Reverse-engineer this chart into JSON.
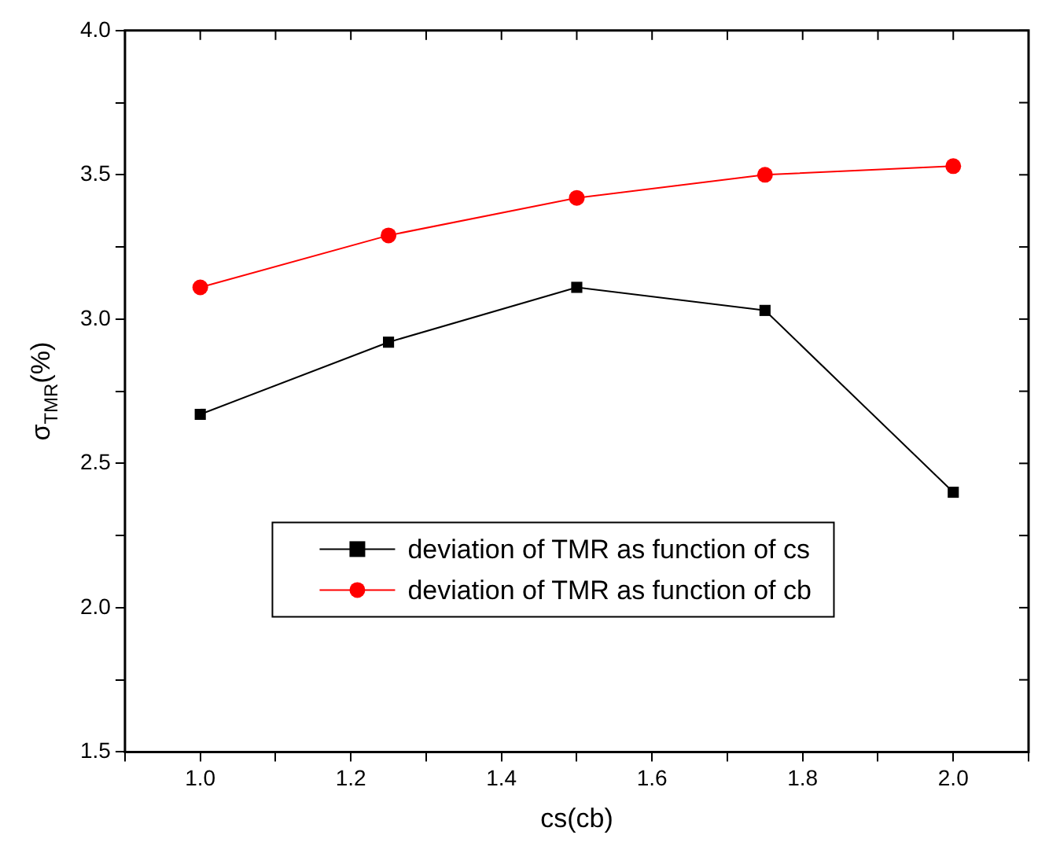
{
  "chart_data": {
    "type": "line",
    "xlabel": "cs(cb)",
    "ylabel": "σ$_{TMR}$(%)",
    "x": [
      1.0,
      1.25,
      1.5,
      1.75,
      2.0
    ],
    "series": [
      {
        "name": "deviation of TMR as function of cs",
        "color": "#000000",
        "marker": "square",
        "values": [
          2.67,
          2.92,
          3.11,
          3.03,
          2.4
        ]
      },
      {
        "name": "deviation of TMR as function of cb",
        "color": "#ff0000",
        "marker": "circle",
        "values": [
          3.11,
          3.29,
          3.42,
          3.5,
          3.53
        ]
      }
    ],
    "xlim": [
      0.9,
      2.1
    ],
    "xticks": [
      {
        "value": 0.9,
        "label": null
      },
      {
        "value": 1,
        "label": "1.0"
      },
      {
        "value": 1.1,
        "label": null
      },
      1.2,
      {
        "value": 1.3,
        "label": null
      },
      1.4,
      {
        "value": 1.5,
        "label": null
      },
      1.6,
      {
        "value": 1.7,
        "label": null
      },
      1.8,
      {
        "value": 1.9,
        "label": null
      },
      {
        "value": 2,
        "label": "2.0"
      },
      {
        "value": 2.1,
        "label": null
      }
    ],
    "ylim": [
      1.5,
      4.0
    ],
    "yticks": [
      1.5,
      {
        "value": 1.75,
        "label": null
      },
      {
        "value": 2,
        "label": "2.0"
      },
      {
        "value": 2.25,
        "label": null
      },
      2.5,
      {
        "value": 2.75,
        "label": null
      },
      {
        "value": 3,
        "label": "3.0"
      },
      {
        "value": 3.25,
        "label": null
      },
      3.5,
      {
        "value": 3.75,
        "label": null
      },
      {
        "value": 4,
        "label": "4.0"
      }
    ],
    "grid": false,
    "legend": "bottom",
    "line_style": "solid"
  }
}
